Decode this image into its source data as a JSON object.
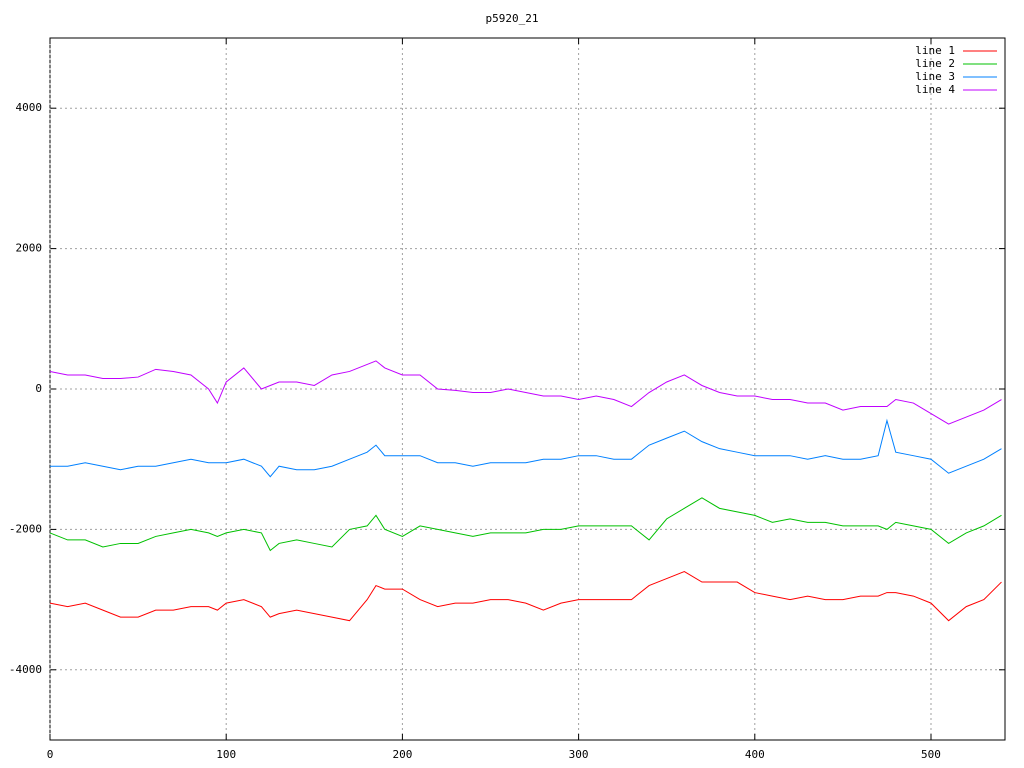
{
  "chart_data": {
    "type": "line",
    "title": "p5920_21",
    "x": [
      0,
      10,
      20,
      30,
      40,
      50,
      60,
      70,
      80,
      90,
      95,
      100,
      110,
      120,
      125,
      130,
      140,
      150,
      160,
      170,
      180,
      185,
      190,
      200,
      210,
      220,
      230,
      240,
      250,
      260,
      270,
      280,
      290,
      300,
      310,
      320,
      330,
      340,
      350,
      360,
      370,
      380,
      390,
      400,
      410,
      420,
      430,
      440,
      450,
      460,
      470,
      475,
      480,
      490,
      500,
      510,
      520,
      530,
      540
    ],
    "series": [
      {
        "name": "line 1",
        "color": "#ff0000",
        "values": [
          -3050,
          -3100,
          -3050,
          -3150,
          -3250,
          -3250,
          -3150,
          -3150,
          -3100,
          -3100,
          -3150,
          -3050,
          -3000,
          -3100,
          -3250,
          -3200,
          -3150,
          -3200,
          -3250,
          -3300,
          -3000,
          -2800,
          -2850,
          -2850,
          -3000,
          -3100,
          -3050,
          -3050,
          -3000,
          -3000,
          -3050,
          -3150,
          -3050,
          -3000,
          -3000,
          -3000,
          -3000,
          -2800,
          -2700,
          -2600,
          -2750,
          -2750,
          -2750,
          -2900,
          -2950,
          -3000,
          -2950,
          -3000,
          -3000,
          -2950,
          -2950,
          -2900,
          -2900,
          -2950,
          -3050,
          -3300,
          -3100,
          -3000,
          -2750
        ]
      },
      {
        "name": "line 2",
        "color": "#00c000",
        "values": [
          -2050,
          -2150,
          -2150,
          -2250,
          -2200,
          -2200,
          -2100,
          -2050,
          -2000,
          -2050,
          -2100,
          -2050,
          -2000,
          -2050,
          -2300,
          -2200,
          -2150,
          -2200,
          -2250,
          -2000,
          -1950,
          -1800,
          -2000,
          -2100,
          -1950,
          -2000,
          -2050,
          -2100,
          -2050,
          -2050,
          -2050,
          -2000,
          -2000,
          -1950,
          -1950,
          -1950,
          -1950,
          -2150,
          -1850,
          -1700,
          -1550,
          -1700,
          -1750,
          -1800,
          -1900,
          -1850,
          -1900,
          -1900,
          -1950,
          -1950,
          -1950,
          -2000,
          -1900,
          -1950,
          -2000,
          -2200,
          -2050,
          -1950,
          -1800
        ]
      },
      {
        "name": "line 3",
        "color": "#0080ff",
        "values": [
          -1100,
          -1100,
          -1050,
          -1100,
          -1150,
          -1100,
          -1100,
          -1050,
          -1000,
          -1050,
          -1050,
          -1050,
          -1000,
          -1100,
          -1250,
          -1100,
          -1150,
          -1150,
          -1100,
          -1000,
          -900,
          -800,
          -950,
          -950,
          -950,
          -1050,
          -1050,
          -1100,
          -1050,
          -1050,
          -1050,
          -1000,
          -1000,
          -950,
          -950,
          -1000,
          -1000,
          -800,
          -700,
          -600,
          -750,
          -850,
          -900,
          -950,
          -950,
          -950,
          -1000,
          -950,
          -1000,
          -1000,
          -950,
          -450,
          -900,
          -950,
          -1000,
          -1200,
          -1100,
          -1000,
          -850
        ]
      },
      {
        "name": "line 4",
        "color": "#c000ff",
        "values": [
          250,
          200,
          200,
          150,
          150,
          170,
          280,
          250,
          200,
          0,
          -200,
          100,
          300,
          0,
          50,
          100,
          100,
          50,
          200,
          250,
          350,
          400,
          300,
          200,
          200,
          0,
          -20,
          -50,
          -50,
          0,
          -50,
          -100,
          -100,
          -150,
          -100,
          -150,
          -250,
          -50,
          100,
          200,
          50,
          -50,
          -100,
          -100,
          -150,
          -150,
          -200,
          -200,
          -300,
          -250,
          -250,
          -250,
          -150,
          -200,
          -350,
          -500,
          -400,
          -300,
          -150
        ]
      }
    ],
    "xlim": [
      0,
      542
    ],
    "ylim": [
      -5000,
      5000
    ],
    "xticks": [
      0,
      100,
      200,
      300,
      400,
      500
    ],
    "yticks": [
      -4000,
      -2000,
      0,
      2000,
      4000
    ],
    "grid": true,
    "legend": "top-right"
  }
}
